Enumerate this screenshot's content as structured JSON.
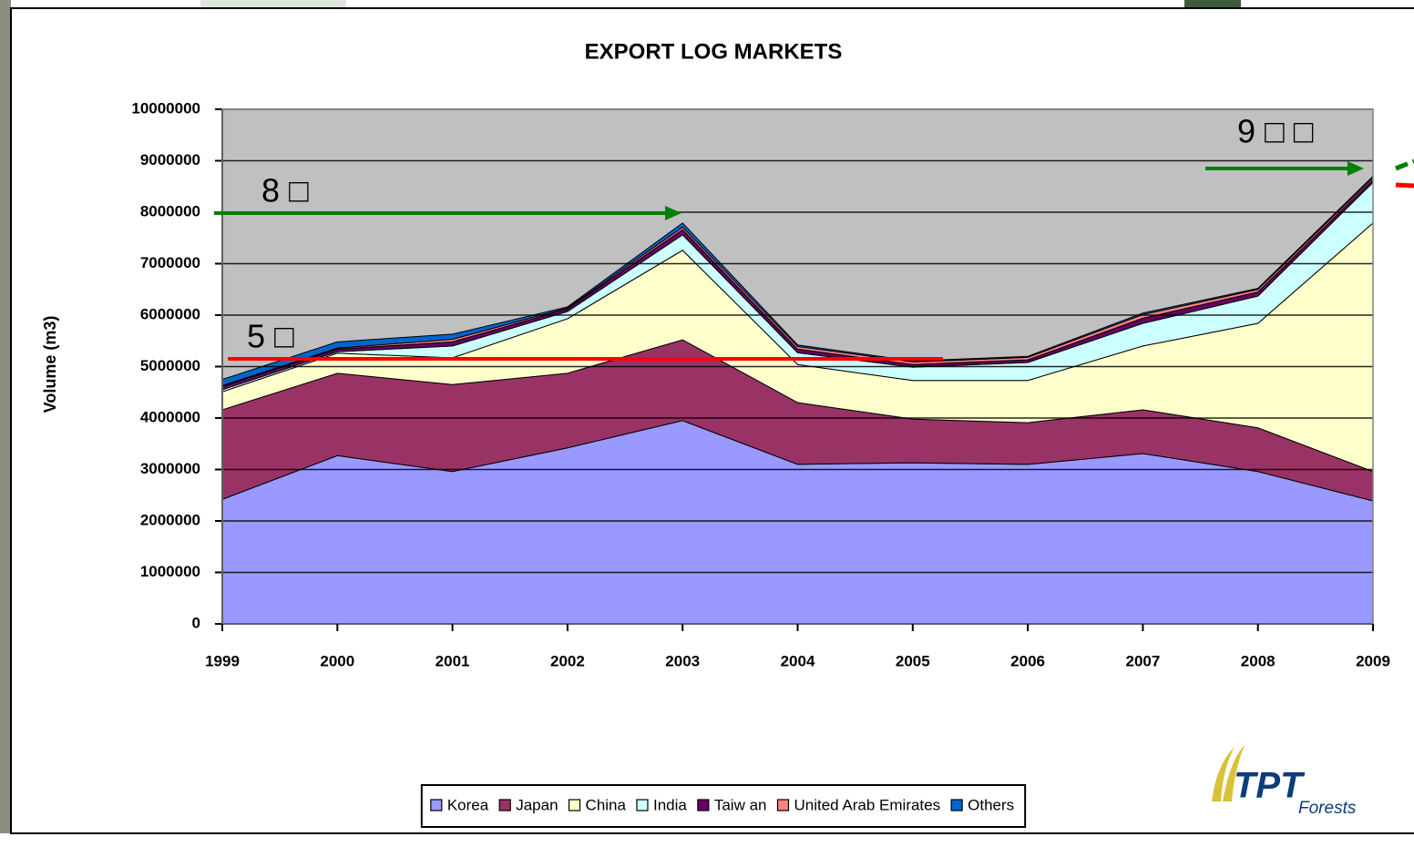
{
  "chart_data": {
    "type": "stacked-area",
    "title": "EXPORT LOG MARKETS",
    "y_label": "Volume (m3)",
    "categories": [
      "1999",
      "2000",
      "2001",
      "2002",
      "2003",
      "2004",
      "2005",
      "2006",
      "2007",
      "2008",
      "2009"
    ],
    "ylim": [
      0,
      10000000
    ],
    "yticks": [
      0,
      1000000,
      2000000,
      3000000,
      4000000,
      5000000,
      6000000,
      7000000,
      8000000,
      9000000,
      10000000
    ],
    "grid": true,
    "legend": "bottom",
    "series": [
      {
        "name": "Korea",
        "color": "#9999ff",
        "values": [
          2420000,
          3270000,
          2960000,
          3420000,
          3950000,
          3100000,
          3130000,
          3100000,
          3310000,
          2960000,
          2390000
        ]
      },
      {
        "name": "Japan",
        "color": "#993366",
        "values": [
          1740000,
          1600000,
          1690000,
          1450000,
          1570000,
          1200000,
          850000,
          810000,
          850000,
          850000,
          570000
        ]
      },
      {
        "name": "China",
        "color": "#ffffcc",
        "values": [
          350000,
          390000,
          520000,
          1060000,
          1740000,
          740000,
          750000,
          820000,
          1240000,
          2030000,
          4830000
        ]
      },
      {
        "name": "India",
        "color": "#ccffff",
        "values": [
          40000,
          30000,
          230000,
          140000,
          300000,
          230000,
          260000,
          350000,
          440000,
          530000,
          790000
        ]
      },
      {
        "name": "Taiw an",
        "color": "#660066",
        "values": [
          60000,
          50000,
          80000,
          50000,
          100000,
          70000,
          50000,
          50000,
          100000,
          80000,
          50000
        ]
      },
      {
        "name": "United Arab Emirates",
        "color": "#ff8080",
        "values": [
          20000,
          20000,
          50000,
          20000,
          50000,
          50000,
          50000,
          50000,
          70000,
          50000,
          40000
        ]
      },
      {
        "name": "Others",
        "color": "#0066cc",
        "values": [
          120000,
          120000,
          100000,
          20000,
          80000,
          30000,
          20000,
          20000,
          30000,
          20000,
          30000
        ]
      }
    ],
    "annotations": [
      "8 □",
      "5 □",
      "9 □ □"
    ],
    "logo": {
      "name": "TPT",
      "sub": "Forests"
    }
  }
}
